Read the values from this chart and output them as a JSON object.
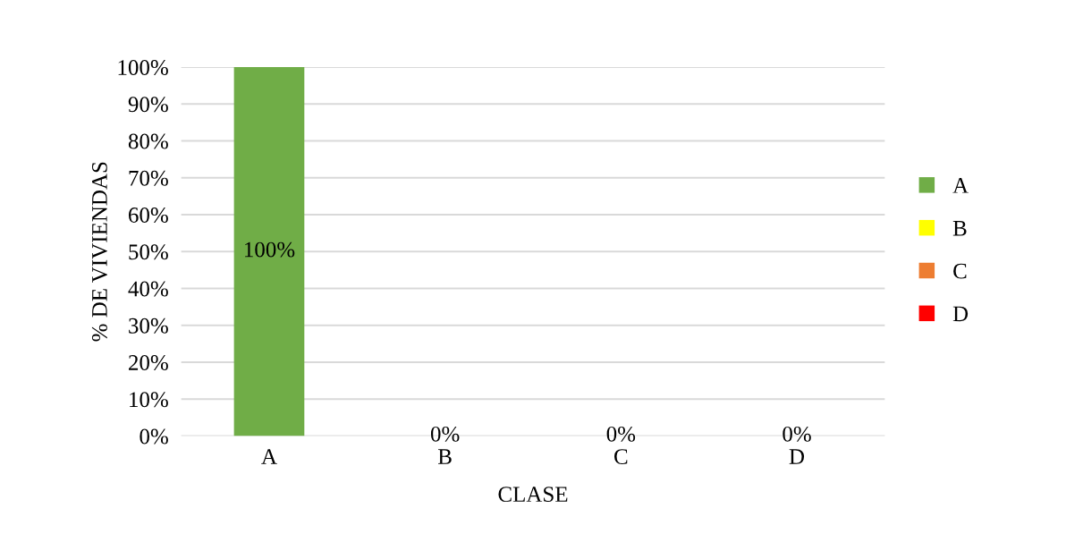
{
  "chart_data": {
    "type": "bar",
    "xlabel": "CLASE",
    "ylabel": "% DE VIVIENDAS",
    "categories": [
      "A",
      "B",
      "C",
      "D"
    ],
    "series": [
      {
        "name": "A",
        "color": "#70ad47",
        "values": [
          100,
          null,
          null,
          null
        ],
        "value_labels": [
          "100%",
          null,
          null,
          null
        ]
      },
      {
        "name": "B",
        "color": "#ffff00",
        "values": [
          null,
          0,
          null,
          null
        ],
        "value_labels": [
          null,
          "0%",
          null,
          null
        ]
      },
      {
        "name": "C",
        "color": "#ed7d31",
        "values": [
          null,
          null,
          0,
          null
        ],
        "value_labels": [
          null,
          null,
          "0%",
          null
        ]
      },
      {
        "name": "D",
        "color": "#ff0000",
        "values": [
          null,
          null,
          null,
          0
        ],
        "value_labels": [
          null,
          null,
          null,
          "0%"
        ]
      }
    ],
    "ylim": [
      0,
      100
    ],
    "yticks": [
      {
        "value": 0,
        "label": "0%"
      },
      {
        "value": 10,
        "label": "10%"
      },
      {
        "value": 20,
        "label": "20%"
      },
      {
        "value": 30,
        "label": "30%"
      },
      {
        "value": 40,
        "label": "40%"
      },
      {
        "value": 50,
        "label": "50%"
      },
      {
        "value": 60,
        "label": "60%"
      },
      {
        "value": 70,
        "label": "70%"
      },
      {
        "value": 80,
        "label": "80%"
      },
      {
        "value": 90,
        "label": "90%"
      },
      {
        "value": 100,
        "label": "100%"
      }
    ],
    "grid": "y",
    "legend": "right"
  }
}
